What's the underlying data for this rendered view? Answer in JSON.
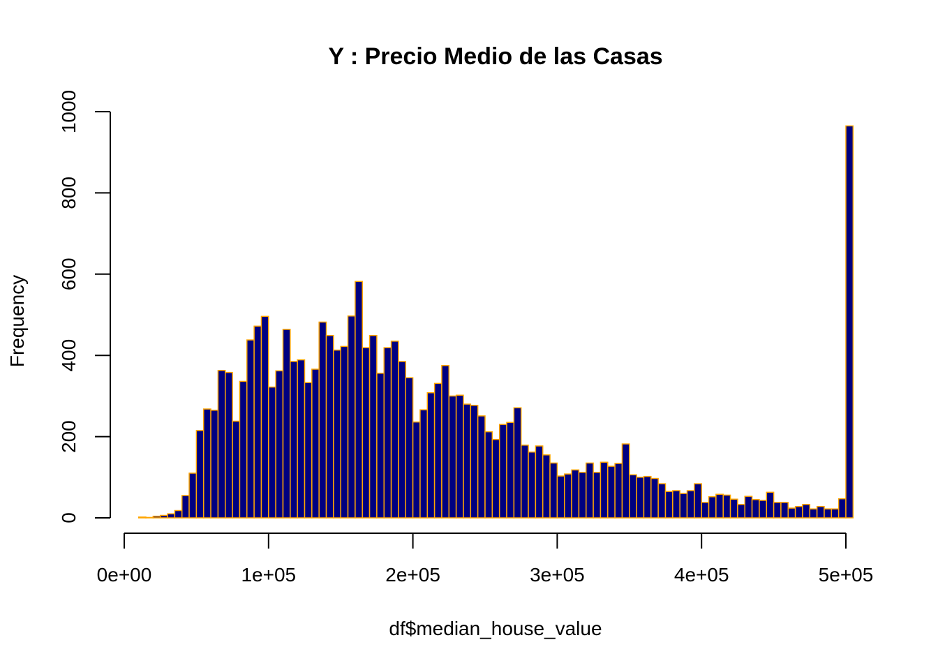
{
  "chart_data": {
    "type": "bar",
    "title": "Y : Precio Medio de las Casas",
    "xlabel": "df$median_house_value",
    "ylabel": "Frequency",
    "xlim": [
      0,
      500000
    ],
    "ylim": [
      0,
      1000
    ],
    "bin_width": 5000,
    "bin_start": 10000,
    "x_ticks": [
      0,
      100000,
      200000,
      300000,
      400000,
      500000
    ],
    "x_tick_labels": [
      "0e+00",
      "1e+05",
      "2e+05",
      "3e+05",
      "4e+05",
      "5e+05"
    ],
    "y_ticks": [
      0,
      200,
      400,
      600,
      800,
      1000
    ],
    "y_tick_labels": [
      "0",
      "200",
      "400",
      "600",
      "800",
      "1000"
    ],
    "values": [
      2,
      1,
      4,
      6,
      10,
      18,
      55,
      110,
      215,
      268,
      265,
      363,
      358,
      238,
      336,
      438,
      472,
      496,
      322,
      362,
      464,
      385,
      389,
      333,
      366,
      482,
      449,
      413,
      422,
      497,
      582,
      419,
      449,
      356,
      419,
      435,
      385,
      345,
      236,
      266,
      308,
      331,
      375,
      300,
      302,
      280,
      277,
      251,
      212,
      193,
      230,
      235,
      271,
      179,
      162,
      177,
      155,
      135,
      103,
      108,
      118,
      112,
      135,
      112,
      137,
      127,
      134,
      182,
      106,
      100,
      102,
      97,
      84,
      65,
      67,
      60,
      67,
      84,
      38,
      52,
      58,
      56,
      46,
      33,
      53,
      45,
      43,
      63,
      38,
      38,
      24,
      28,
      33,
      22,
      28,
      22,
      22,
      47,
      965
    ],
    "colors": {
      "bar_fill": "#000080",
      "bar_border": "#FFA500"
    }
  }
}
